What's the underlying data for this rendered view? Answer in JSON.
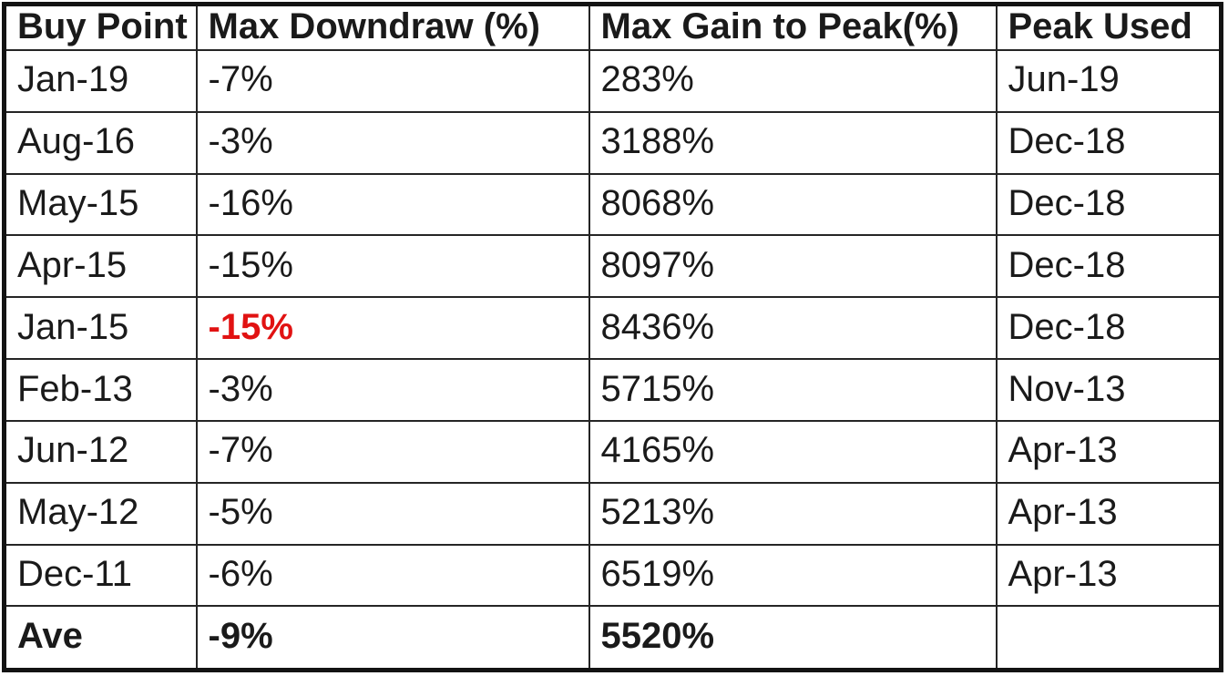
{
  "colors": {
    "border_outer": "#131313",
    "border_inner": "#252525",
    "text": "#1a1a1a",
    "highlight_red": "#e11212",
    "background": "#ffffff"
  },
  "table": {
    "columns": [
      "Buy Point",
      "Max Downdraw (%)",
      "Max Gain to Peak(%)",
      "Peak Used"
    ],
    "rows": [
      {
        "buy_point": "Jan-19",
        "max_downdraw": "-7%",
        "max_gain": "283%",
        "peak_used": "Jun-19",
        "downdraw_red": false,
        "is_summary": false
      },
      {
        "buy_point": "Aug-16",
        "max_downdraw": "-3%",
        "max_gain": "3188%",
        "peak_used": "Dec-18",
        "downdraw_red": false,
        "is_summary": false
      },
      {
        "buy_point": "May-15",
        "max_downdraw": "-16%",
        "max_gain": "8068%",
        "peak_used": "Dec-18",
        "downdraw_red": false,
        "is_summary": false
      },
      {
        "buy_point": "Apr-15",
        "max_downdraw": "-15%",
        "max_gain": "8097%",
        "peak_used": "Dec-18",
        "downdraw_red": false,
        "is_summary": false
      },
      {
        "buy_point": "Jan-15",
        "max_downdraw": "-15%",
        "max_gain": "8436%",
        "peak_used": "Dec-18",
        "downdraw_red": true,
        "is_summary": false
      },
      {
        "buy_point": "Feb-13",
        "max_downdraw": "-3%",
        "max_gain": "5715%",
        "peak_used": "Nov-13",
        "downdraw_red": false,
        "is_summary": false
      },
      {
        "buy_point": "Jun-12",
        "max_downdraw": "-7%",
        "max_gain": "4165%",
        "peak_used": "Apr-13",
        "downdraw_red": false,
        "is_summary": false
      },
      {
        "buy_point": "May-12",
        "max_downdraw": "-5%",
        "max_gain": "5213%",
        "peak_used": "Apr-13",
        "downdraw_red": false,
        "is_summary": false
      },
      {
        "buy_point": "Dec-11",
        "max_downdraw": "-6%",
        "max_gain": "6519%",
        "peak_used": "Apr-13",
        "downdraw_red": false,
        "is_summary": false
      },
      {
        "buy_point": "Ave",
        "max_downdraw": "-9%",
        "max_gain": "5520%",
        "peak_used": "",
        "downdraw_red": false,
        "is_summary": true
      }
    ]
  },
  "chart_data": {
    "type": "table",
    "columns": [
      "Buy Point",
      "Max Downdraw (%)",
      "Max Gain to Peak(%)",
      "Peak Used"
    ],
    "rows": [
      [
        "Jan-19",
        "-7%",
        "283%",
        "Jun-19"
      ],
      [
        "Aug-16",
        "-3%",
        "3188%",
        "Dec-18"
      ],
      [
        "May-15",
        "-16%",
        "8068%",
        "Dec-18"
      ],
      [
        "Apr-15",
        "-15%",
        "8097%",
        "Dec-18"
      ],
      [
        "Jan-15",
        "-15%",
        "8436%",
        "Dec-18"
      ],
      [
        "Feb-13",
        "-3%",
        "5715%",
        "Nov-13"
      ],
      [
        "Jun-12",
        "-7%",
        "4165%",
        "Apr-13"
      ],
      [
        "May-12",
        "-5%",
        "5213%",
        "Apr-13"
      ],
      [
        "Dec-11",
        "-6%",
        "6519%",
        "Apr-13"
      ],
      [
        "Ave",
        "-9%",
        "5520%",
        ""
      ]
    ],
    "numeric": {
      "buy_points": [
        "Jan-19",
        "Aug-16",
        "May-15",
        "Apr-15",
        "Jan-15",
        "Feb-13",
        "Jun-12",
        "May-12",
        "Dec-11"
      ],
      "max_downdraw_pct": [
        -7,
        -3,
        -16,
        -15,
        -15,
        -3,
        -7,
        -5,
        -6
      ],
      "max_gain_to_peak_pct": [
        283,
        3188,
        8068,
        8097,
        8436,
        5715,
        4165,
        5213,
        6519
      ],
      "peak_used": [
        "Jun-19",
        "Dec-18",
        "Dec-18",
        "Dec-18",
        "Dec-18",
        "Nov-13",
        "Apr-13",
        "Apr-13",
        "Apr-13"
      ],
      "average_max_downdraw_pct": -9,
      "average_max_gain_to_peak_pct": 5520
    },
    "highlights": [
      {
        "row": "Jan-15",
        "column": "Max Downdraw (%)",
        "value": "-15%",
        "style": "bold red text",
        "color": "#e11212"
      }
    ],
    "layout": {
      "grid": "full black gridlines",
      "header_bold": true,
      "summary_row_bold": true,
      "legend_position": "none"
    }
  }
}
